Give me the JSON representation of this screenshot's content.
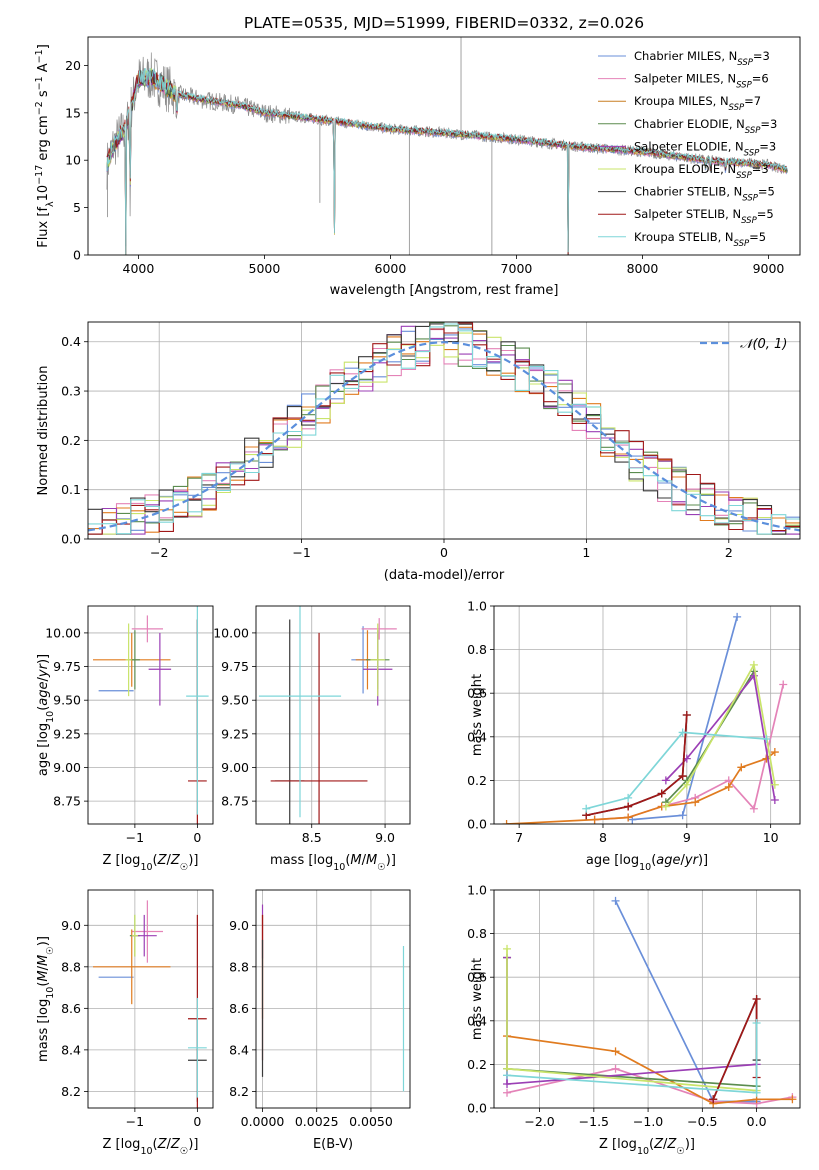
{
  "chart_data": [
    {
      "id": "spectrum",
      "type": "line",
      "title": "PLATE=0535, MJD=51999, FIBERID=0332, z=0.026",
      "xlabel": "wavelength [Angstrom, rest frame]",
      "ylabel": "Flux [f_λ 10^-17 erg cm^-2 s^-1 A^-1]",
      "xlim": [
        3600,
        9250
      ],
      "ylim": [
        0,
        23
      ],
      "xticks": [
        4000,
        5000,
        6000,
        7000,
        8000,
        9000
      ],
      "yticks": [
        0,
        5,
        10,
        15,
        20
      ],
      "legend_position": "upper-right",
      "legend": [
        {
          "base": "Chabrier MILES, N",
          "sub": "SSP",
          "tail": "=3",
          "color": "#6a8fd9"
        },
        {
          "base": "Salpeter MILES, N",
          "sub": "SSP",
          "tail": "=6",
          "color": "#e483b8"
        },
        {
          "base": "Kroupa MILES, N",
          "sub": "SSP",
          "tail": "=7",
          "color": "#c87f22"
        },
        {
          "base": "Chabrier ELODIE, N",
          "sub": "SSP",
          "tail": "=3",
          "color": "#5b8c4f"
        },
        {
          "base": "Salpeter ELODIE, N",
          "sub": "SSP",
          "tail": "=3",
          "color": "#9b3fb5"
        },
        {
          "base": "Kroupa ELODIE, N",
          "sub": "SSP",
          "tail": "=3",
          "color": "#c9e46a"
        },
        {
          "base": "Chabrier STELIB, N",
          "sub": "SSP",
          "tail": "=5",
          "color": "#3a3a3a"
        },
        {
          "base": "Salpeter STELIB, N",
          "sub": "SSP",
          "tail": "=5",
          "color": "#a01818"
        },
        {
          "base": "Kroupa STELIB, N",
          "sub": "SSP",
          "tail": "=5",
          "color": "#7ed6d8"
        }
      ],
      "continuum": [
        [
          3750,
          9.5
        ],
        [
          3800,
          11.5
        ],
        [
          3900,
          13.5
        ],
        [
          4000,
          18.5
        ],
        [
          4100,
          18.8
        ],
        [
          4300,
          17.0
        ],
        [
          4500,
          16.4
        ],
        [
          4800,
          15.8
        ],
        [
          5000,
          15.0
        ],
        [
          5500,
          14.2
        ],
        [
          6000,
          13.3
        ],
        [
          6500,
          12.8
        ],
        [
          7000,
          12.2
        ],
        [
          7500,
          11.4
        ],
        [
          8000,
          10.9
        ],
        [
          8500,
          10.0
        ],
        [
          9000,
          9.5
        ],
        [
          9150,
          9.0
        ]
      ],
      "absorption_features": [
        [
          3900,
          0
        ],
        [
          3934,
          4.5
        ],
        [
          4305,
          13.5
        ],
        [
          5555,
          0
        ],
        [
          7410,
          0
        ],
        [
          8500,
          8.9
        ],
        [
          8540,
          8.6
        ],
        [
          8660,
          8.7
        ]
      ],
      "observed_spikes": [
        [
          6150,
          0
        ],
        [
          6805,
          0
        ],
        [
          5440,
          5.5
        ],
        [
          6560,
          23
        ],
        [
          3755,
          4.0
        ]
      ]
    },
    {
      "id": "residuals",
      "type": "histogram",
      "xlabel": "(data-model)/error",
      "ylabel": "Normed distribution",
      "xlim": [
        -2.5,
        2.5
      ],
      "ylim": [
        0,
        0.44
      ],
      "xticks": [
        -2,
        -1,
        0,
        1,
        2
      ],
      "yticks": [
        0.0,
        0.1,
        0.2,
        0.3,
        0.4
      ],
      "legend_position": "upper-right",
      "reference_curve": {
        "label": "𝒩(0, 1)",
        "mean": 0,
        "sigma": 1,
        "color": "#5b8fdc"
      },
      "bin_edges_range": [
        -2.5,
        2.5
      ],
      "bins": 50,
      "series_colors": [
        "#6a8fd9",
        "#e483b8",
        "#e07b1f",
        "#5b8c4f",
        "#9b3fb5",
        "#c9e46a",
        "#3a3a3a",
        "#a01818",
        "#7ed6d8"
      ]
    },
    {
      "id": "age_vs_Z",
      "type": "errorbar",
      "xlabel": "Z [log10(Z/Z☉)]",
      "ylabel": "age  [log10(age/yr)]",
      "xlim": [
        -1.75,
        0.25
      ],
      "ylim": [
        8.58,
        10.2
      ],
      "xticks": [
        -1,
        0
      ],
      "yticks": [
        8.75,
        9.0,
        9.25,
        9.5,
        9.75,
        10.0
      ],
      "points": [
        {
          "x": -1.3,
          "y": 9.57,
          "xerr": 0.28,
          "yerr": 0.0,
          "color": "#6a8fd9"
        },
        {
          "x": -0.8,
          "y": 10.03,
          "xerr": 0.25,
          "yerr": 0.1,
          "color": "#e483b8"
        },
        {
          "x": -1.05,
          "y": 9.8,
          "xerr": 0.62,
          "yerr": 0.2,
          "color": "#e07b1f"
        },
        {
          "x": -1.0,
          "y": 9.8,
          "xerr": 0.08,
          "yerr": 0.22,
          "color": "#5b8c4f"
        },
        {
          "x": -0.6,
          "y": 9.73,
          "xerr": 0.18,
          "yerr": 0.27,
          "color": "#9b3fb5"
        },
        {
          "x": -1.1,
          "y": 9.8,
          "xerr": 0.05,
          "yerr": 0.27,
          "color": "#c9e46a"
        },
        {
          "x": 0.0,
          "y": 9.55,
          "xerr": 0.0,
          "yerr": 0.55,
          "color": "#3a3a3a"
        },
        {
          "x": 0.0,
          "y": 8.9,
          "xerr": 0.15,
          "yerr": 1.2,
          "color": "#a01818"
        },
        {
          "x": 0.0,
          "y": 9.53,
          "xerr": 0.18,
          "yerr": 0.88,
          "color": "#7ed6d8"
        }
      ]
    },
    {
      "id": "age_vs_mass",
      "type": "errorbar",
      "xlabel": "mass [log10(M/M☉)]",
      "ylabel": "",
      "xlim": [
        8.12,
        9.17
      ],
      "ylim": [
        8.58,
        10.2
      ],
      "xticks": [
        8.5,
        9.0
      ],
      "yticks": [
        8.75,
        9.0,
        9.25,
        9.5,
        9.75,
        10.0
      ],
      "points": [
        {
          "x": 8.85,
          "y": 9.8,
          "xerr": 0.08,
          "yerr": 0.25,
          "color": "#6a8fd9"
        },
        {
          "x": 8.96,
          "y": 10.03,
          "xerr": 0.12,
          "yerr": 0.08,
          "color": "#e483b8"
        },
        {
          "x": 8.88,
          "y": 9.8,
          "xerr": 0.08,
          "yerr": 0.22,
          "color": "#e07b1f"
        },
        {
          "x": 8.95,
          "y": 9.8,
          "xerr": 0.08,
          "yerr": 0.22,
          "color": "#5b8c4f"
        },
        {
          "x": 8.95,
          "y": 9.73,
          "xerr": 0.1,
          "yerr": 0.27,
          "color": "#9b3fb5"
        },
        {
          "x": 8.95,
          "y": 9.8,
          "xerr": 0.05,
          "yerr": 0.27,
          "color": "#c9e46a"
        },
        {
          "x": 8.35,
          "y": 8.9,
          "xerr": 0.1,
          "yerr": 1.2,
          "color": "#3a3a3a"
        },
        {
          "x": 8.55,
          "y": 8.9,
          "xerr": 0.33,
          "yerr": 1.1,
          "color": "#a01818"
        },
        {
          "x": 8.42,
          "y": 9.53,
          "xerr": 0.28,
          "yerr": 0.9,
          "color": "#7ed6d8"
        }
      ]
    },
    {
      "id": "weight_vs_age",
      "type": "line",
      "xlabel": "age  [log10(age/yr)]",
      "ylabel": "mass weight",
      "xlim": [
        6.7,
        10.35
      ],
      "ylim": [
        0,
        1.0
      ],
      "xticks": [
        7,
        8,
        9,
        10
      ],
      "yticks": [
        0.0,
        0.2,
        0.4,
        0.6,
        0.8,
        1.0
      ],
      "series": [
        {
          "color": "#6a8fd9",
          "x": [
            8.35,
            8.95,
            9.6
          ],
          "y": [
            0.02,
            0.04,
            0.95
          ]
        },
        {
          "color": "#e483b8",
          "x": [
            7.9,
            8.3,
            8.7,
            9.1,
            9.5,
            9.8,
            10.15
          ],
          "y": [
            0.02,
            0.03,
            0.08,
            0.12,
            0.2,
            0.07,
            0.64
          ]
        },
        {
          "color": "#e07b1f",
          "x": [
            6.85,
            7.9,
            8.3,
            8.7,
            9.1,
            9.5,
            9.65,
            9.95,
            10.05
          ],
          "y": [
            0.0,
            0.02,
            0.03,
            0.08,
            0.1,
            0.17,
            0.26,
            0.3,
            0.33
          ]
        },
        {
          "color": "#5b8c4f",
          "x": [
            8.75,
            9.0,
            9.8
          ],
          "y": [
            0.1,
            0.2,
            0.7
          ]
        },
        {
          "color": "#9b3fb5",
          "x": [
            8.75,
            9.0,
            9.8,
            10.05
          ],
          "y": [
            0.2,
            0.3,
            0.68,
            0.11
          ]
        },
        {
          "color": "#c9e46a",
          "x": [
            8.75,
            9.0,
            9.8,
            10.05
          ],
          "y": [
            0.08,
            0.18,
            0.73,
            0.18
          ]
        },
        {
          "color": "#3a3a3a",
          "x": [
            7.8,
            8.3,
            8.7,
            8.95,
            9.0
          ],
          "y": [
            0.04,
            0.08,
            0.14,
            0.22,
            0.5
          ]
        },
        {
          "color": "#a01818",
          "x": [
            7.8,
            8.3,
            8.7,
            8.95,
            9.0
          ],
          "y": [
            0.04,
            0.08,
            0.14,
            0.22,
            0.5
          ]
        },
        {
          "color": "#7ed6d8",
          "x": [
            7.8,
            8.3,
            8.95,
            9.95
          ],
          "y": [
            0.07,
            0.12,
            0.42,
            0.39
          ]
        }
      ]
    },
    {
      "id": "mass_vs_Z",
      "type": "errorbar",
      "xlabel": "Z [log10(Z/Z☉)]",
      "ylabel": "mass [log10(M/M☉)]",
      "xlim": [
        -1.75,
        0.25
      ],
      "ylim": [
        8.12,
        9.17
      ],
      "xticks": [
        -1,
        0
      ],
      "yticks": [
        8.2,
        8.4,
        8.6,
        8.8,
        9.0
      ],
      "points": [
        {
          "x": -1.3,
          "y": 8.75,
          "xerr": 0.28,
          "yerr": 0.0,
          "color": "#6a8fd9"
        },
        {
          "x": -0.8,
          "y": 8.97,
          "xerr": 0.25,
          "yerr": 0.15,
          "color": "#e483b8"
        },
        {
          "x": -1.05,
          "y": 8.8,
          "xerr": 0.62,
          "yerr": 0.18,
          "color": "#e07b1f"
        },
        {
          "x": -1.0,
          "y": 8.95,
          "xerr": 0.08,
          "yerr": 0.1,
          "color": "#5b8c4f"
        },
        {
          "x": -0.85,
          "y": 8.95,
          "xerr": 0.2,
          "yerr": 0.1,
          "color": "#9b3fb5"
        },
        {
          "x": -1.0,
          "y": 8.95,
          "xerr": 0.05,
          "yerr": 0.1,
          "color": "#c9e46a"
        },
        {
          "x": 0.0,
          "y": 8.35,
          "xerr": 0.15,
          "yerr": 0.2,
          "color": "#3a3a3a"
        },
        {
          "x": 0.0,
          "y": 8.55,
          "xerr": 0.15,
          "yerr": 0.5,
          "color": "#a01818"
        },
        {
          "x": 0.0,
          "y": 8.41,
          "xerr": 0.15,
          "yerr": 0.24,
          "color": "#7ed6d8"
        }
      ]
    },
    {
      "id": "mass_vs_ebv",
      "type": "errorbar",
      "xlabel": "E(B-V)",
      "ylabel": "",
      "xlim": [
        -0.0003,
        0.0068
      ],
      "ylim": [
        8.12,
        9.17
      ],
      "xticks": [
        0.0,
        0.0025,
        0.005
      ],
      "xtick_labels": [
        "0.0000",
        "0.0025",
        "0.0050"
      ],
      "yticks": [
        8.2,
        8.4,
        8.6,
        8.8,
        9.0
      ],
      "points": [
        {
          "x": 0.0,
          "y": 8.97,
          "xerr": 0.0,
          "yerr": 0.13,
          "color": "#9b3fb5"
        },
        {
          "x": 0.0,
          "y": 8.8,
          "xerr": 0.0,
          "yerr": 0.25,
          "color": "#e07b1f"
        },
        {
          "x": 0.0,
          "y": 8.7,
          "xerr": 0.0,
          "yerr": 0.35,
          "color": "#a01818"
        },
        {
          "x": 0.0,
          "y": 8.6,
          "xerr": 0.0,
          "yerr": 0.33,
          "color": "#3a3a3a"
        },
        {
          "x": 0.0065,
          "y": 8.55,
          "xerr": 0.0,
          "yerr": 0.35,
          "color": "#7ed6d8"
        }
      ]
    },
    {
      "id": "weight_vs_Z",
      "type": "line",
      "xlabel": "Z [log10(Z/Z☉)]",
      "ylabel": "mass weight",
      "xlim": [
        -2.42,
        0.4
      ],
      "ylim": [
        0,
        1.0
      ],
      "xticks": [
        -2.0,
        -1.5,
        -1.0,
        -0.5,
        0.0
      ],
      "yticks": [
        0.0,
        0.2,
        0.4,
        0.6,
        0.8,
        1.0
      ],
      "series": [
        {
          "color": "#6a8fd9",
          "x": [
            -1.3,
            -0.4,
            0.0
          ],
          "y": [
            0.95,
            0.03,
            0.03
          ]
        },
        {
          "color": "#e483b8",
          "x": [
            -2.3,
            -1.3,
            -0.4,
            0.0,
            0.33
          ],
          "y": [
            0.07,
            0.18,
            0.03,
            0.02,
            0.05
          ]
        },
        {
          "color": "#e07b1f",
          "x": [
            -2.3,
            -1.3,
            -0.4,
            0.0,
            0.33
          ],
          "y": [
            0.33,
            0.26,
            0.02,
            0.04,
            0.04
          ]
        },
        {
          "color": "#5b8c4f",
          "x": [
            -2.3,
            -2.3,
            0.0
          ],
          "y": [
            0.69,
            0.18,
            0.1
          ]
        },
        {
          "color": "#9b3fb5",
          "x": [
            -2.3,
            -2.3,
            0.0
          ],
          "y": [
            0.69,
            0.11,
            0.2
          ]
        },
        {
          "color": "#c9e46a",
          "x": [
            -2.3,
            -2.3,
            0.0
          ],
          "y": [
            0.73,
            0.18,
            0.08
          ]
        },
        {
          "color": "#3a3a3a",
          "x": [
            -0.4,
            0.0,
            0.0
          ],
          "y": [
            0.04,
            0.5,
            0.22
          ]
        },
        {
          "color": "#a01818",
          "x": [
            -0.4,
            0.0,
            0.0
          ],
          "y": [
            0.04,
            0.5,
            0.14
          ]
        },
        {
          "color": "#7ed6d8",
          "x": [
            -2.3,
            0.0,
            0.0
          ],
          "y": [
            0.15,
            0.07,
            0.39
          ]
        }
      ]
    }
  ]
}
